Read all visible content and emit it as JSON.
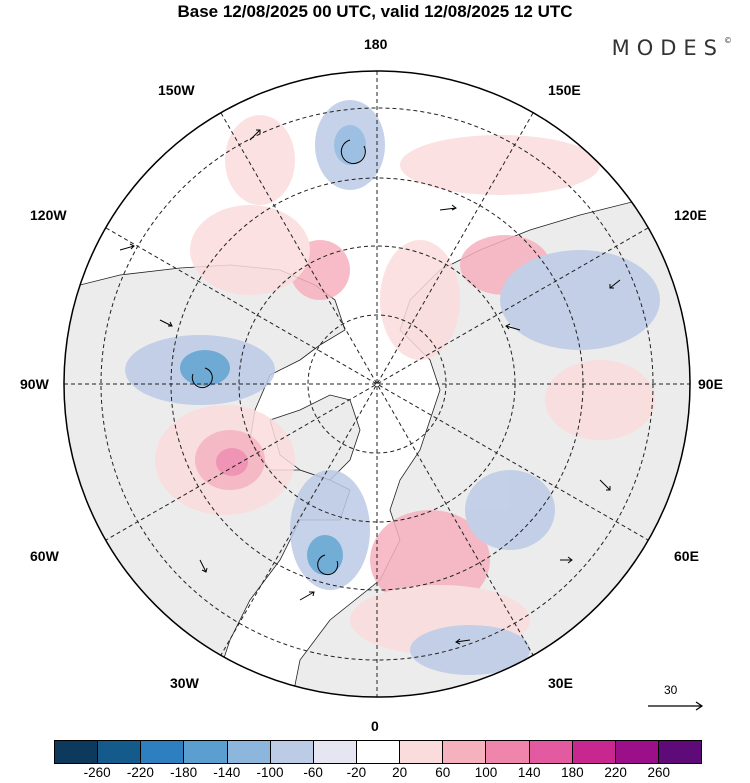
{
  "title": "Base 12/08/2025 00 UTC, valid 12/08/2025 12 UTC",
  "brand": "MODES",
  "brand_mark": "©",
  "longitude_labels": {
    "top": "180",
    "bottom": "0",
    "left": "90W",
    "right": "90E",
    "ul1": "150W",
    "ul2": "120W",
    "ur1": "150E",
    "ur2": "120E",
    "ll1": "60W",
    "ll2": "30W",
    "lr1": "60E",
    "lr2": "30E"
  },
  "wind_reference": {
    "value": "30"
  },
  "colorbar": {
    "colors": [
      "#0d3a5c",
      "#145b8c",
      "#2e7fbf",
      "#5a9fd0",
      "#8db6dd",
      "#bccbe6",
      "#e6e6f2",
      "#ffffff",
      "#fbdcdc",
      "#f6b1be",
      "#f085ab",
      "#e35aa0",
      "#c8278f",
      "#9b0f89",
      "#5e0a78"
    ],
    "ticks": [
      "-260",
      "-220",
      "-180",
      "-140",
      "-100",
      "-60",
      "-20",
      "20",
      "60",
      "100",
      "140",
      "180",
      "220",
      "260"
    ]
  }
}
